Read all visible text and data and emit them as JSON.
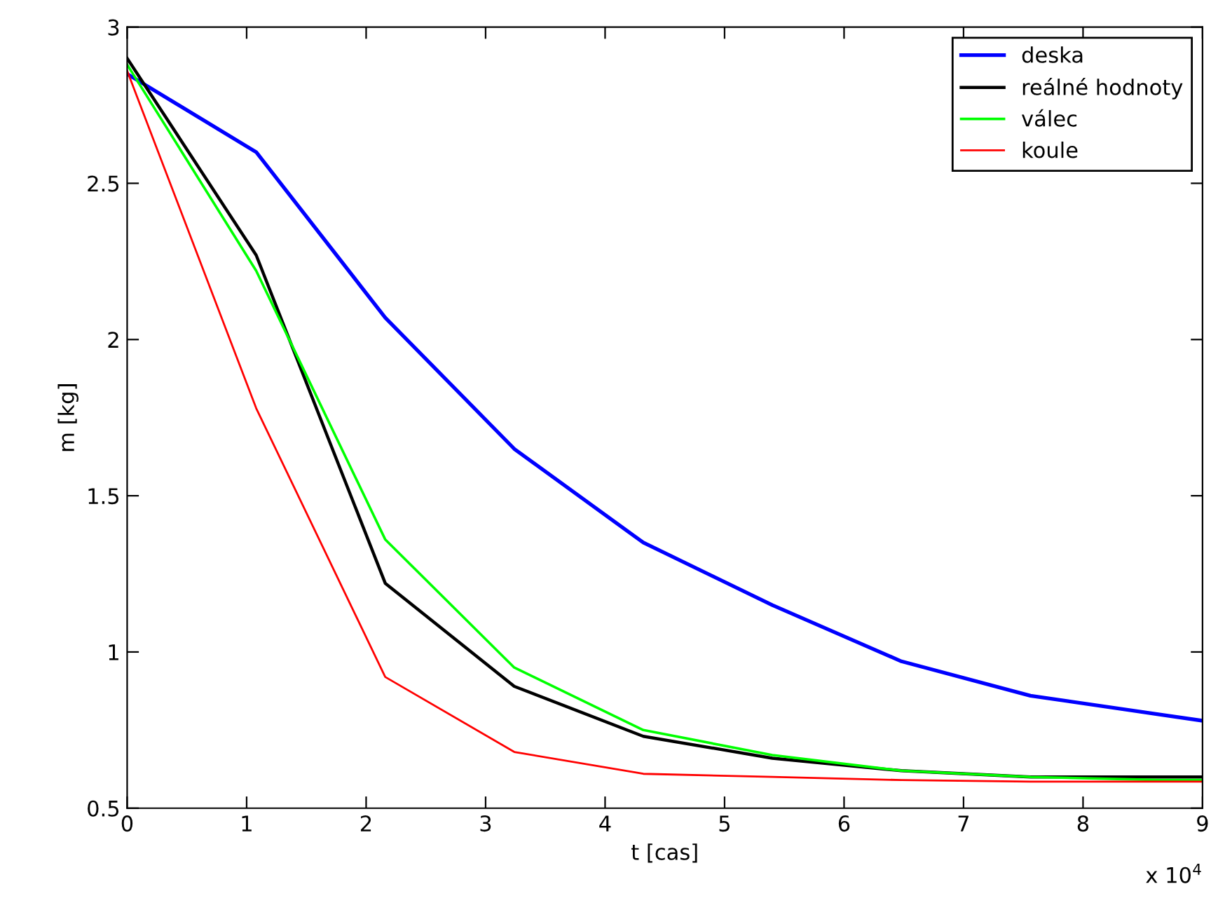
{
  "chart_data": {
    "type": "line",
    "xlabel": "t [cas]",
    "ylabel": "m [kg]",
    "annotations": [
      "x 10$^{4}$"
    ],
    "x": [
      0,
      1.08,
      2.16,
      3.24,
      4.32,
      5.4,
      6.48,
      7.56,
      8.64,
      9
    ],
    "series": [
      {
        "name": "deska",
        "color": "#0000ff",
        "values": [
          2.85,
          2.6,
          2.07,
          1.65,
          1.35,
          1.15,
          0.97,
          0.86,
          0.8,
          0.78
        ]
      },
      {
        "name": "reálné hodnoty",
        "color": "#000000",
        "values": [
          2.9,
          2.27,
          1.22,
          0.89,
          0.73,
          0.66,
          0.62,
          0.6,
          0.6,
          0.6
        ]
      },
      {
        "name": "válec",
        "color": "#00ff00",
        "values": [
          2.88,
          2.22,
          1.36,
          0.95,
          0.75,
          0.67,
          0.62,
          0.6,
          0.59,
          0.59
        ]
      },
      {
        "name": "koule",
        "color": "#ff0000",
        "values": [
          2.86,
          1.78,
          0.92,
          0.68,
          0.61,
          0.6,
          0.59,
          0.585,
          0.585,
          0.585
        ]
      }
    ],
    "xlim": [
      0,
      9
    ],
    "xticks": [
      0,
      1,
      2,
      3,
      4,
      5,
      6,
      7,
      8,
      9
    ],
    "ylim": [
      0.5,
      3
    ],
    "yticks": [
      0.5,
      1,
      1.5,
      2,
      2.5,
      3
    ],
    "grid": false,
    "legend": "top right",
    "marker": "none",
    "line_style": "solid"
  }
}
